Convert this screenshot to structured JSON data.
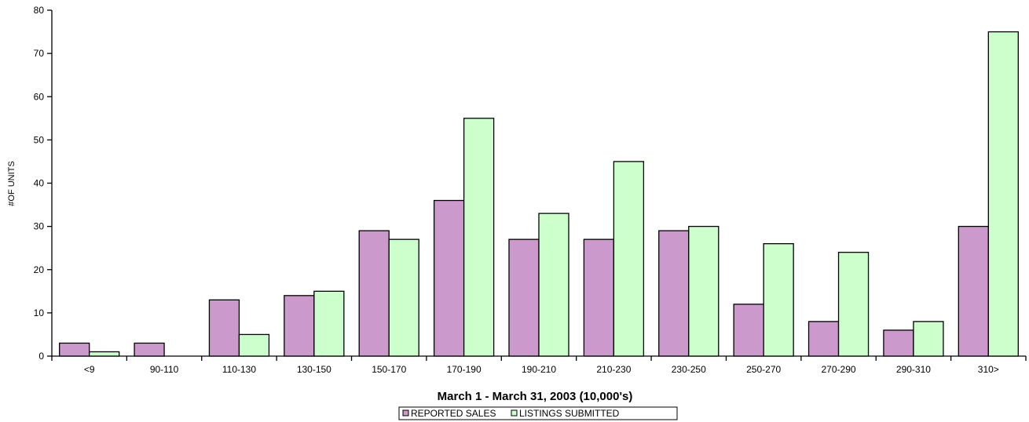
{
  "chart_data": {
    "type": "bar",
    "title": "",
    "xlabel": "March 1 - March 31, 2003 (10,000's)",
    "ylabel": "#OF UNITS",
    "ylim": [
      0,
      80
    ],
    "yticks": [
      0,
      10,
      20,
      30,
      40,
      50,
      60,
      70,
      80
    ],
    "categories": [
      "<9",
      "90-110",
      "110-130",
      "130-150",
      "150-170",
      "170-190",
      "190-210",
      "210-230",
      "230-250",
      "250-270",
      "270-290",
      "290-310",
      "310>"
    ],
    "series": [
      {
        "name": "REPORTED SALES",
        "color": "#cc99cc",
        "values": [
          3,
          3,
          13,
          14,
          29,
          36,
          27,
          27,
          29,
          12,
          8,
          6,
          30
        ]
      },
      {
        "name": "LISTINGS SUBMITTED",
        "color": "#ccffcc",
        "values": [
          1,
          0,
          5,
          15,
          27,
          55,
          33,
          45,
          30,
          26,
          24,
          8,
          75
        ]
      }
    ],
    "grid": false,
    "legend_position": "bottom"
  }
}
